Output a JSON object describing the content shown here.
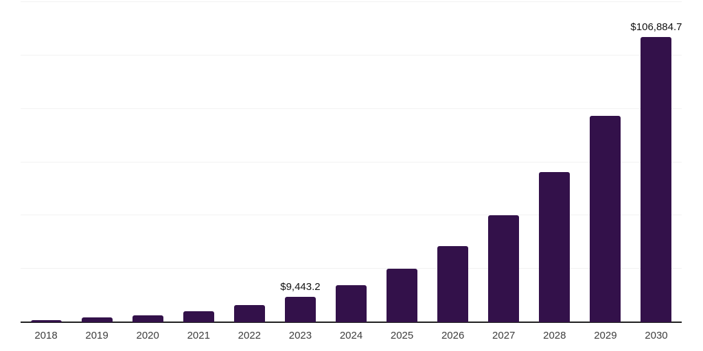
{
  "chart_data": {
    "type": "bar",
    "title": "",
    "xlabel": "",
    "ylabel": "",
    "categories": [
      "2018",
      "2019",
      "2020",
      "2021",
      "2022",
      "2023",
      "2024",
      "2025",
      "2026",
      "2027",
      "2028",
      "2029",
      "2030"
    ],
    "values": [
      800,
      1900,
      2600,
      4100,
      6350,
      9443.2,
      14000,
      20100,
      28600,
      40200,
      56200,
      77400,
      106884.7
    ],
    "data_labels": [
      "",
      "",
      "",
      "",
      "",
      "$9,443.2",
      "",
      "",
      "",
      "",
      "",
      "",
      "$106,884.7"
    ],
    "ylim": [
      0,
      120000
    ],
    "grid_step": 20000,
    "grid": true,
    "legend": false,
    "bar_width_ratio": 0.61,
    "colors": {
      "bar": "#33114a",
      "axis_line": "#1f1f1f",
      "gridline": "#f2f2f2",
      "tick_label": "#3d3d3d",
      "data_label": "#111111",
      "background": "#ffffff"
    }
  }
}
